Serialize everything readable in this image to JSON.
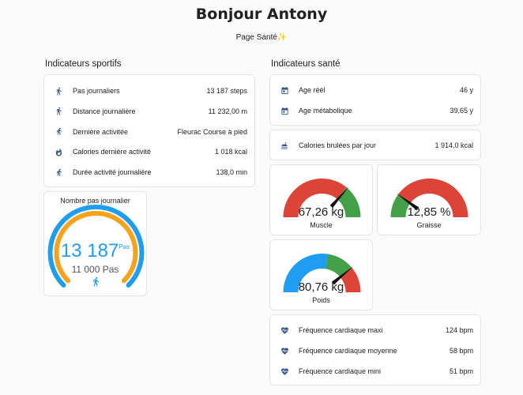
{
  "header": {
    "title": "Bonjour Antony",
    "subtitle": "Page Santé",
    "subtitle_emoji": "✨"
  },
  "sport": {
    "title": "Indicateurs sportifs",
    "rows": [
      {
        "icon": "walk-icon",
        "label": "Pas journaliers",
        "value": "13 187 steps"
      },
      {
        "icon": "walk-icon",
        "label": "Distance journalière",
        "value": "11 232,00 m"
      },
      {
        "icon": "run-icon",
        "label": "Dernière activitée",
        "value": "Fleurac Course à pied"
      },
      {
        "icon": "fire-icon",
        "label": "Calories dernière activité",
        "value": "1 018 kcal"
      },
      {
        "icon": "run-icon",
        "label": "Durée activité journalière",
        "value": "138,0 min"
      }
    ]
  },
  "steps_card": {
    "title": "Nombre pas journalier",
    "value": "13 187",
    "unit": "Pas",
    "goal": "11 000 Pas",
    "progress": 1.0,
    "colors": {
      "outer": "#1e9df1",
      "inner": "#f7a21b"
    }
  },
  "health": {
    "title": "Indicateurs santé",
    "age_rows": [
      {
        "icon": "calendar-icon",
        "label": "Age réél",
        "value": "46 y"
      },
      {
        "icon": "calendar-icon",
        "label": "Age métabolique",
        "value": "39,65 y"
      }
    ],
    "calories_row": {
      "icon": "food-icon",
      "label": "Calories brulées par jour",
      "value": "1 914,0 kcal"
    },
    "heart_rows": [
      {
        "icon": "heart-pulse-icon",
        "label": "Fréquence cardiaque maxi",
        "value": "124 bpm"
      },
      {
        "icon": "heart-pulse-icon",
        "label": "Fréquence cardiaque moyenne",
        "value": "58 bpm"
      },
      {
        "icon": "heart-pulse-icon",
        "label": "Fréquence cardiaque mini",
        "value": "51 bpm"
      }
    ]
  },
  "gauges": {
    "muscle": {
      "value": "67,26 kg",
      "name": "Muscle",
      "needle": 0.73,
      "segments": [
        {
          "from": 0,
          "to": 0.72,
          "color": "#db4437"
        },
        {
          "from": 0.72,
          "to": 1,
          "color": "#43a047"
        }
      ]
    },
    "graisse": {
      "value": "12,85 %",
      "name": "Graisse",
      "needle": 0.2,
      "segments": [
        {
          "from": 0,
          "to": 0.2,
          "color": "#43a047"
        },
        {
          "from": 0.2,
          "to": 1,
          "color": "#db4437"
        }
      ]
    },
    "poids": {
      "value": "80,76 kg",
      "name": "Poids",
      "needle": 0.78,
      "segments": [
        {
          "from": 0,
          "to": 0.55,
          "color": "#1e9df1"
        },
        {
          "from": 0.55,
          "to": 0.78,
          "color": "#43a047"
        },
        {
          "from": 0.78,
          "to": 1,
          "color": "#db4437"
        }
      ]
    }
  }
}
